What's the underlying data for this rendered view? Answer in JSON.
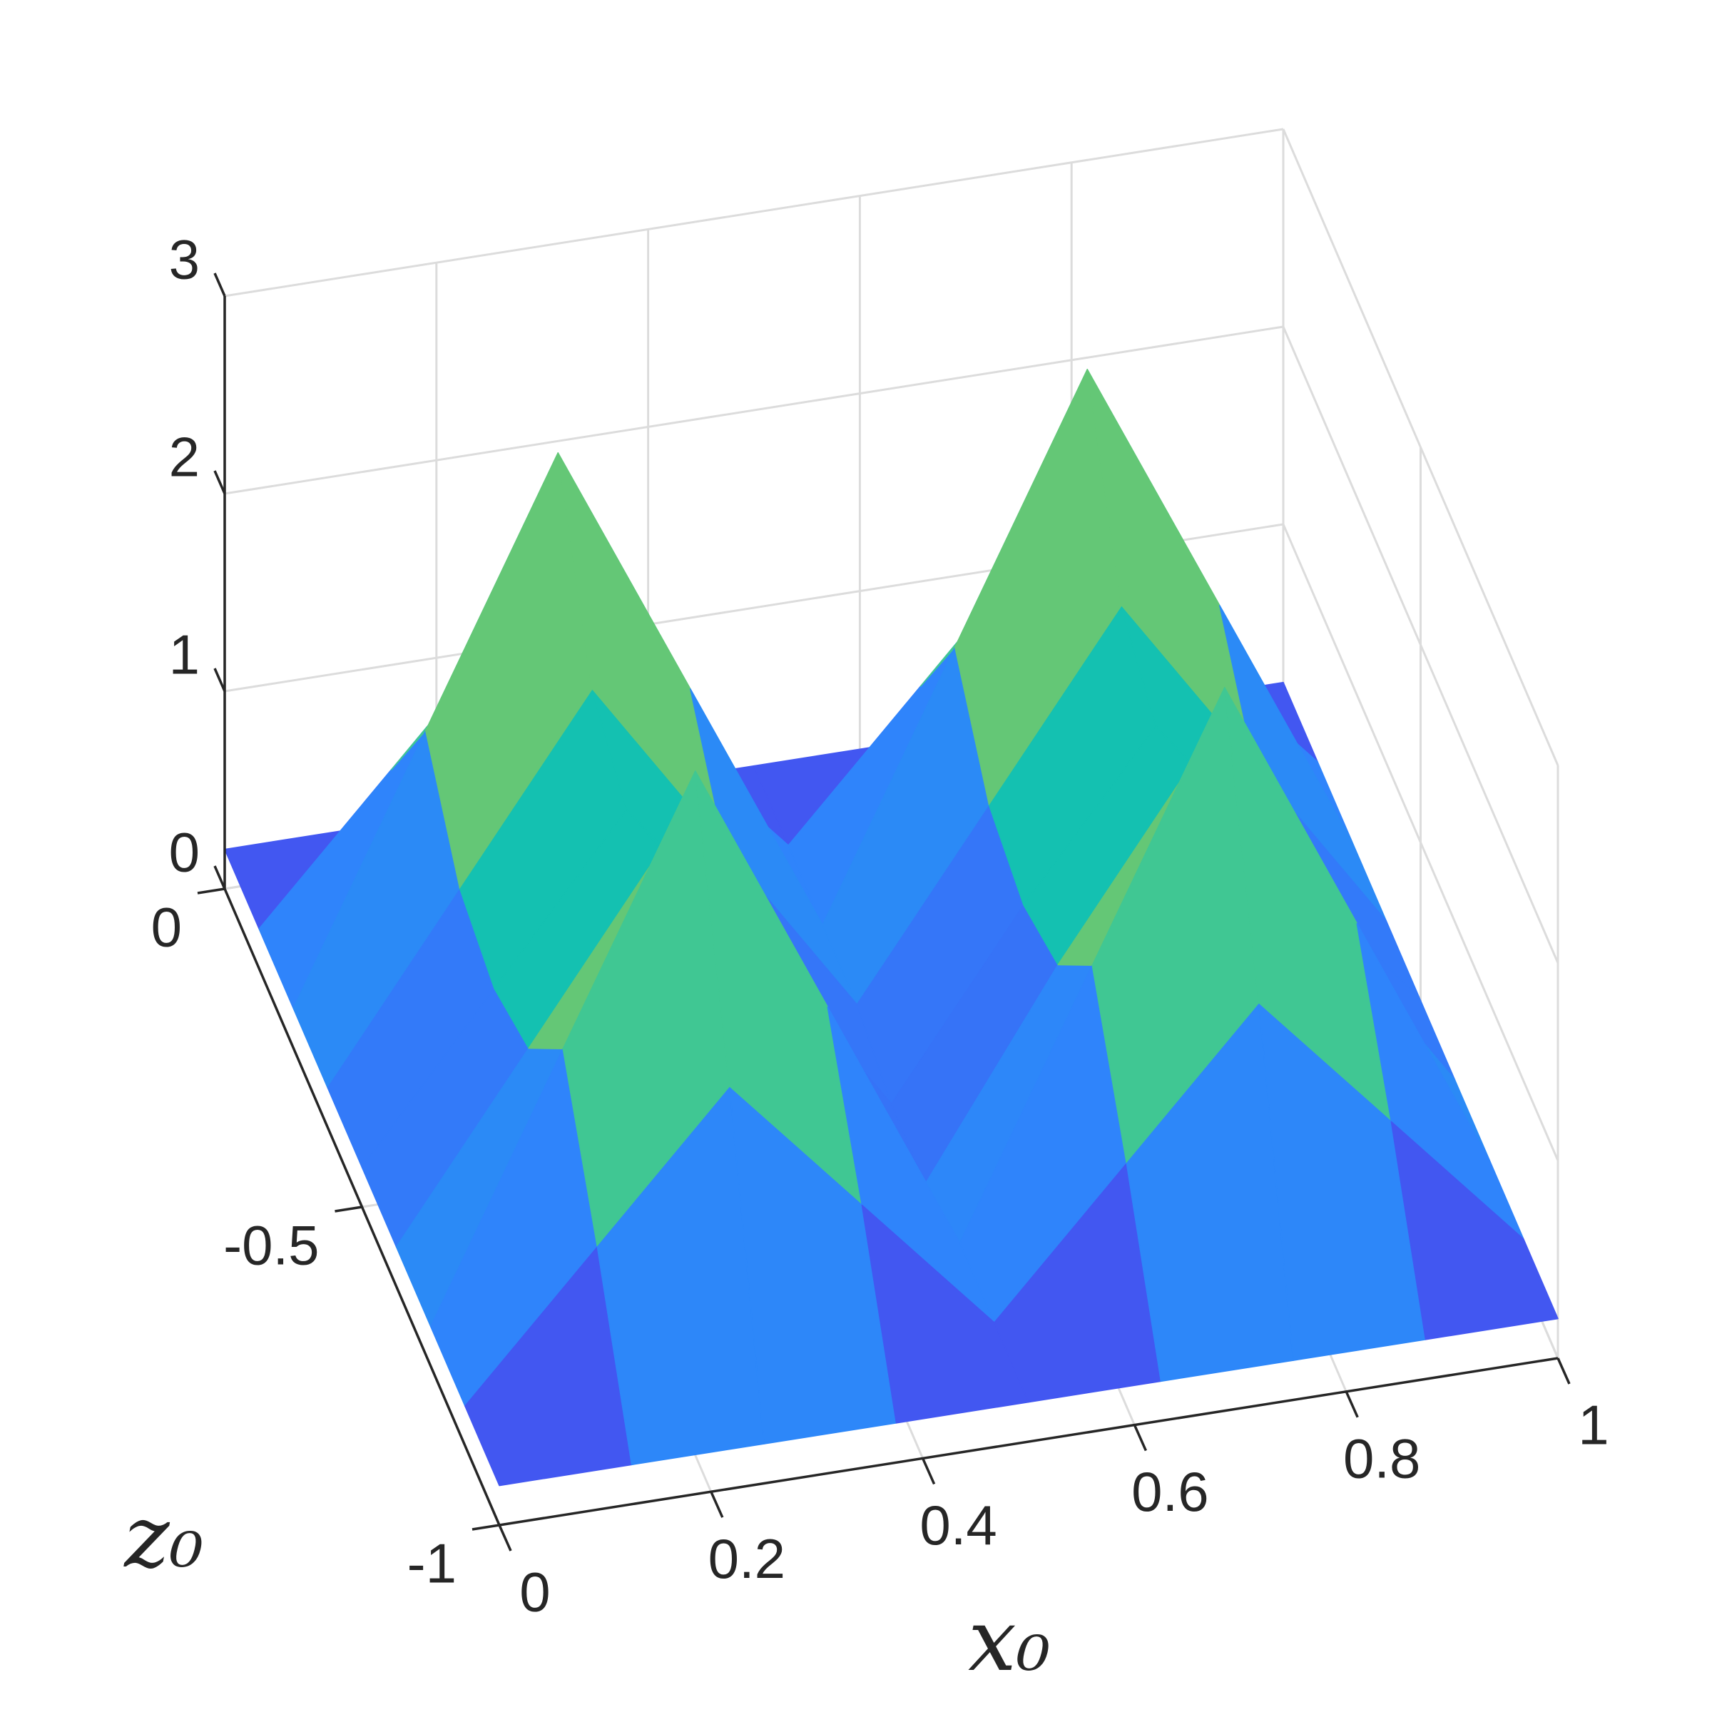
{
  "chart_data": {
    "type": "surface",
    "x": [
      0,
      0.125,
      0.25,
      0.375,
      0.5,
      0.625,
      0.75,
      0.875,
      1
    ],
    "z": [
      0,
      -0.125,
      -0.25,
      -0.375,
      -0.5,
      -0.625,
      -0.75,
      -0.875,
      -1
    ],
    "values": [
      [
        0.2,
        0.2,
        0.2,
        0.2,
        0.2,
        0.2,
        0.2,
        0.2,
        0.2
      ],
      [
        0.2,
        0.9,
        1.6,
        0.9,
        0.2,
        0.9,
        1.6,
        0.9,
        0.2
      ],
      [
        0.2,
        1.5,
        2.8,
        1.5,
        0.2,
        1.5,
        2.8,
        1.5,
        0.2
      ],
      [
        0.2,
        1.1,
        2.0,
        1.1,
        0.2,
        1.1,
        2.0,
        1.1,
        0.2
      ],
      [
        0.2,
        1.0,
        1.8,
        1.0,
        0.1,
        1.0,
        1.8,
        1.0,
        0.2
      ],
      [
        0.2,
        1.1,
        2.0,
        1.1,
        0.1,
        1.1,
        2.0,
        1.1,
        0.2
      ],
      [
        0.2,
        1.5,
        2.8,
        1.5,
        0.2,
        1.5,
        2.8,
        1.5,
        0.2
      ],
      [
        0.2,
        0.9,
        1.6,
        0.9,
        0.2,
        0.9,
        1.6,
        0.9,
        0.2
      ],
      [
        0.2,
        0.2,
        0.2,
        0.2,
        0.2,
        0.2,
        0.2,
        0.2,
        0.2
      ]
    ],
    "xlim": [
      0,
      1
    ],
    "zlim": [
      -1,
      0
    ],
    "ylim": [
      0,
      3
    ],
    "xticks": [
      0,
      0.2,
      0.4,
      0.6,
      0.8,
      1
    ],
    "zticks": [
      -1,
      -0.5,
      0
    ],
    "yticks": [
      0,
      1,
      2,
      3
    ],
    "xlabel": "x₀",
    "zlabel": "z₀",
    "grid": true,
    "colormap": [
      "#3e26a8",
      "#4354f0",
      "#2f84fb",
      "#14adda",
      "#06bfbb",
      "#4ac88c",
      "#a8c43c",
      "#f6b93a",
      "#f8f90e"
    ]
  }
}
